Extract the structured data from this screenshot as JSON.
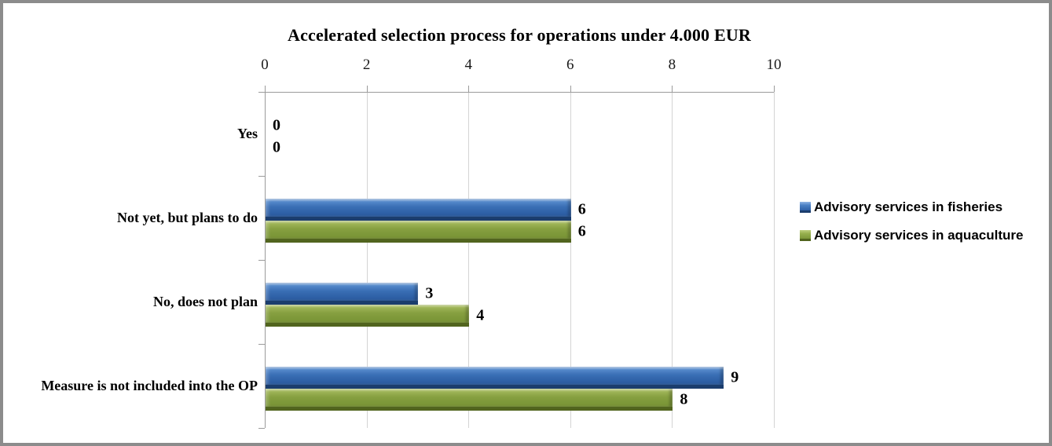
{
  "title": "Accelerated selection process for operations under 4.000 EUR",
  "colors": {
    "fisheries_bar": "#3a6fb5",
    "fisheries_dark": "#1b3d6d",
    "aquaculture_bar": "#87a041",
    "aquaculture_dark": "#51641e",
    "axis": "#9b9b9b",
    "gridline": "#d4d4d4",
    "frame_border": "#8c8c8c"
  },
  "chart_data": {
    "type": "bar",
    "orientation": "horizontal",
    "title": "Accelerated selection process for operations under 4.000 EUR",
    "categories": [
      "Yes",
      "Not yet, but plans to do",
      "No, does not plan",
      "Measure is not included into the OP"
    ],
    "series": [
      {
        "name": "Advisory services in fisheries",
        "color": "#3a6fb5",
        "values": [
          0,
          6,
          3,
          9
        ]
      },
      {
        "name": "Advisory services in aquaculture",
        "color": "#87a041",
        "values": [
          0,
          6,
          4,
          8
        ]
      }
    ],
    "xlim": [
      0,
      10
    ],
    "xticks": [
      "0",
      "2",
      "4",
      "6",
      "8",
      "10"
    ],
    "xlabel": "",
    "ylabel": "",
    "grid": true,
    "gridlines": "vertical",
    "axis_position": "top",
    "legend_position": "right",
    "data_labels": true
  }
}
